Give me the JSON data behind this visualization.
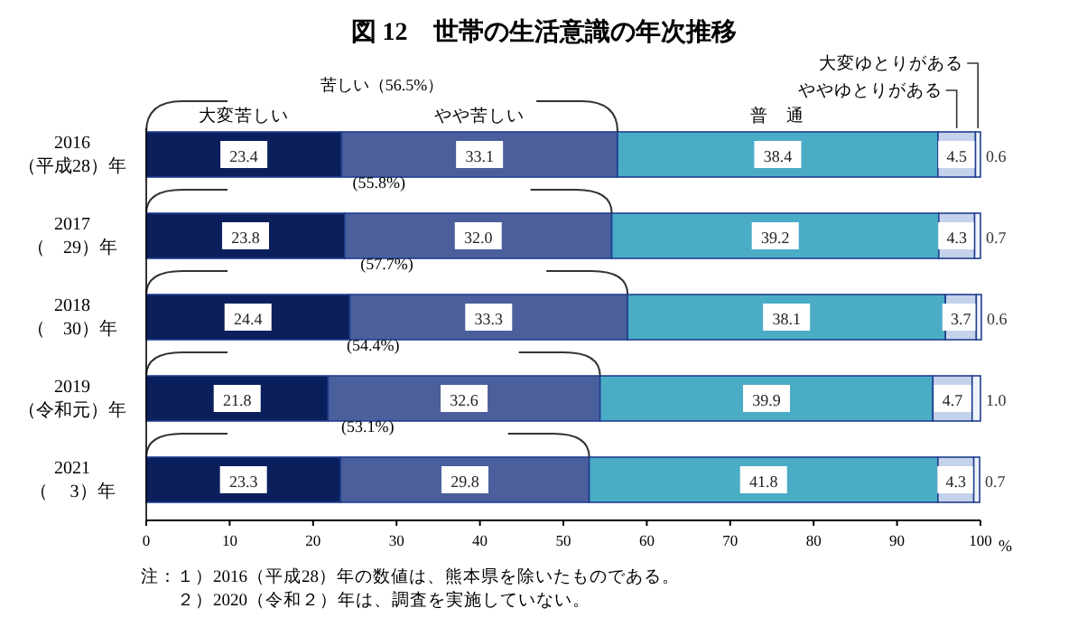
{
  "chart_data": {
    "type": "bar",
    "orientation": "horizontal",
    "stacked": true,
    "title": "図 12　世帯の生活意識の年次推移",
    "xlabel": "%",
    "categories": [
      "2016\n（平成28）年",
      "2017\n（　29）年",
      "2018\n（　30）年",
      "2019\n（令和元）年",
      "2021\n（　 3）年"
    ],
    "series": [
      {
        "name": "大変苦しい",
        "color": "#0a1f5c",
        "values": [
          23.4,
          23.8,
          24.4,
          21.8,
          23.3
        ],
        "value_labels": [
          "23.4",
          "23.8",
          "24.4",
          "21.8",
          "23.3"
        ]
      },
      {
        "name": "やや苦しい",
        "color": "#4a5f9c",
        "values": [
          33.1,
          32.0,
          33.3,
          32.6,
          29.8
        ],
        "value_labels": [
          "33.1",
          "32.0",
          "33.3",
          "32.6",
          "29.8"
        ]
      },
      {
        "name": "普　通",
        "color": "#4bacc6",
        "values": [
          38.4,
          39.2,
          38.1,
          39.9,
          41.8
        ],
        "value_labels": [
          "38.4",
          "39.2",
          "38.1",
          "39.9",
          "41.8"
        ]
      },
      {
        "name": "ややゆとりがある",
        "color": "#c5d2ec",
        "values": [
          4.5,
          4.3,
          3.7,
          4.7,
          4.3
        ],
        "value_labels": [
          "4.5",
          "4.3",
          "3.7",
          "4.7",
          "4.3"
        ]
      },
      {
        "name": "大変ゆとりがある",
        "color": "#eef2fa",
        "values": [
          0.6,
          0.7,
          0.6,
          1.0,
          0.7
        ],
        "value_labels": [
          "0.6",
          "0.7",
          "0.6",
          "1.0",
          "0.7"
        ]
      }
    ],
    "xlim": [
      0,
      100
    ],
    "xticks": [
      0,
      10,
      20,
      30,
      40,
      50,
      60,
      70,
      80,
      90,
      100
    ],
    "legend": "top",
    "annotations": [
      "苦しい（56.5%）",
      "(55.8%)",
      "(57.7%)",
      "(54.4%)",
      "(53.1%)",
      "注：１）2016（平成28）年の数値は、熊本県を除いたものである。",
      "　　２）2020（令和２）年は、調査を実施していない。"
    ]
  }
}
